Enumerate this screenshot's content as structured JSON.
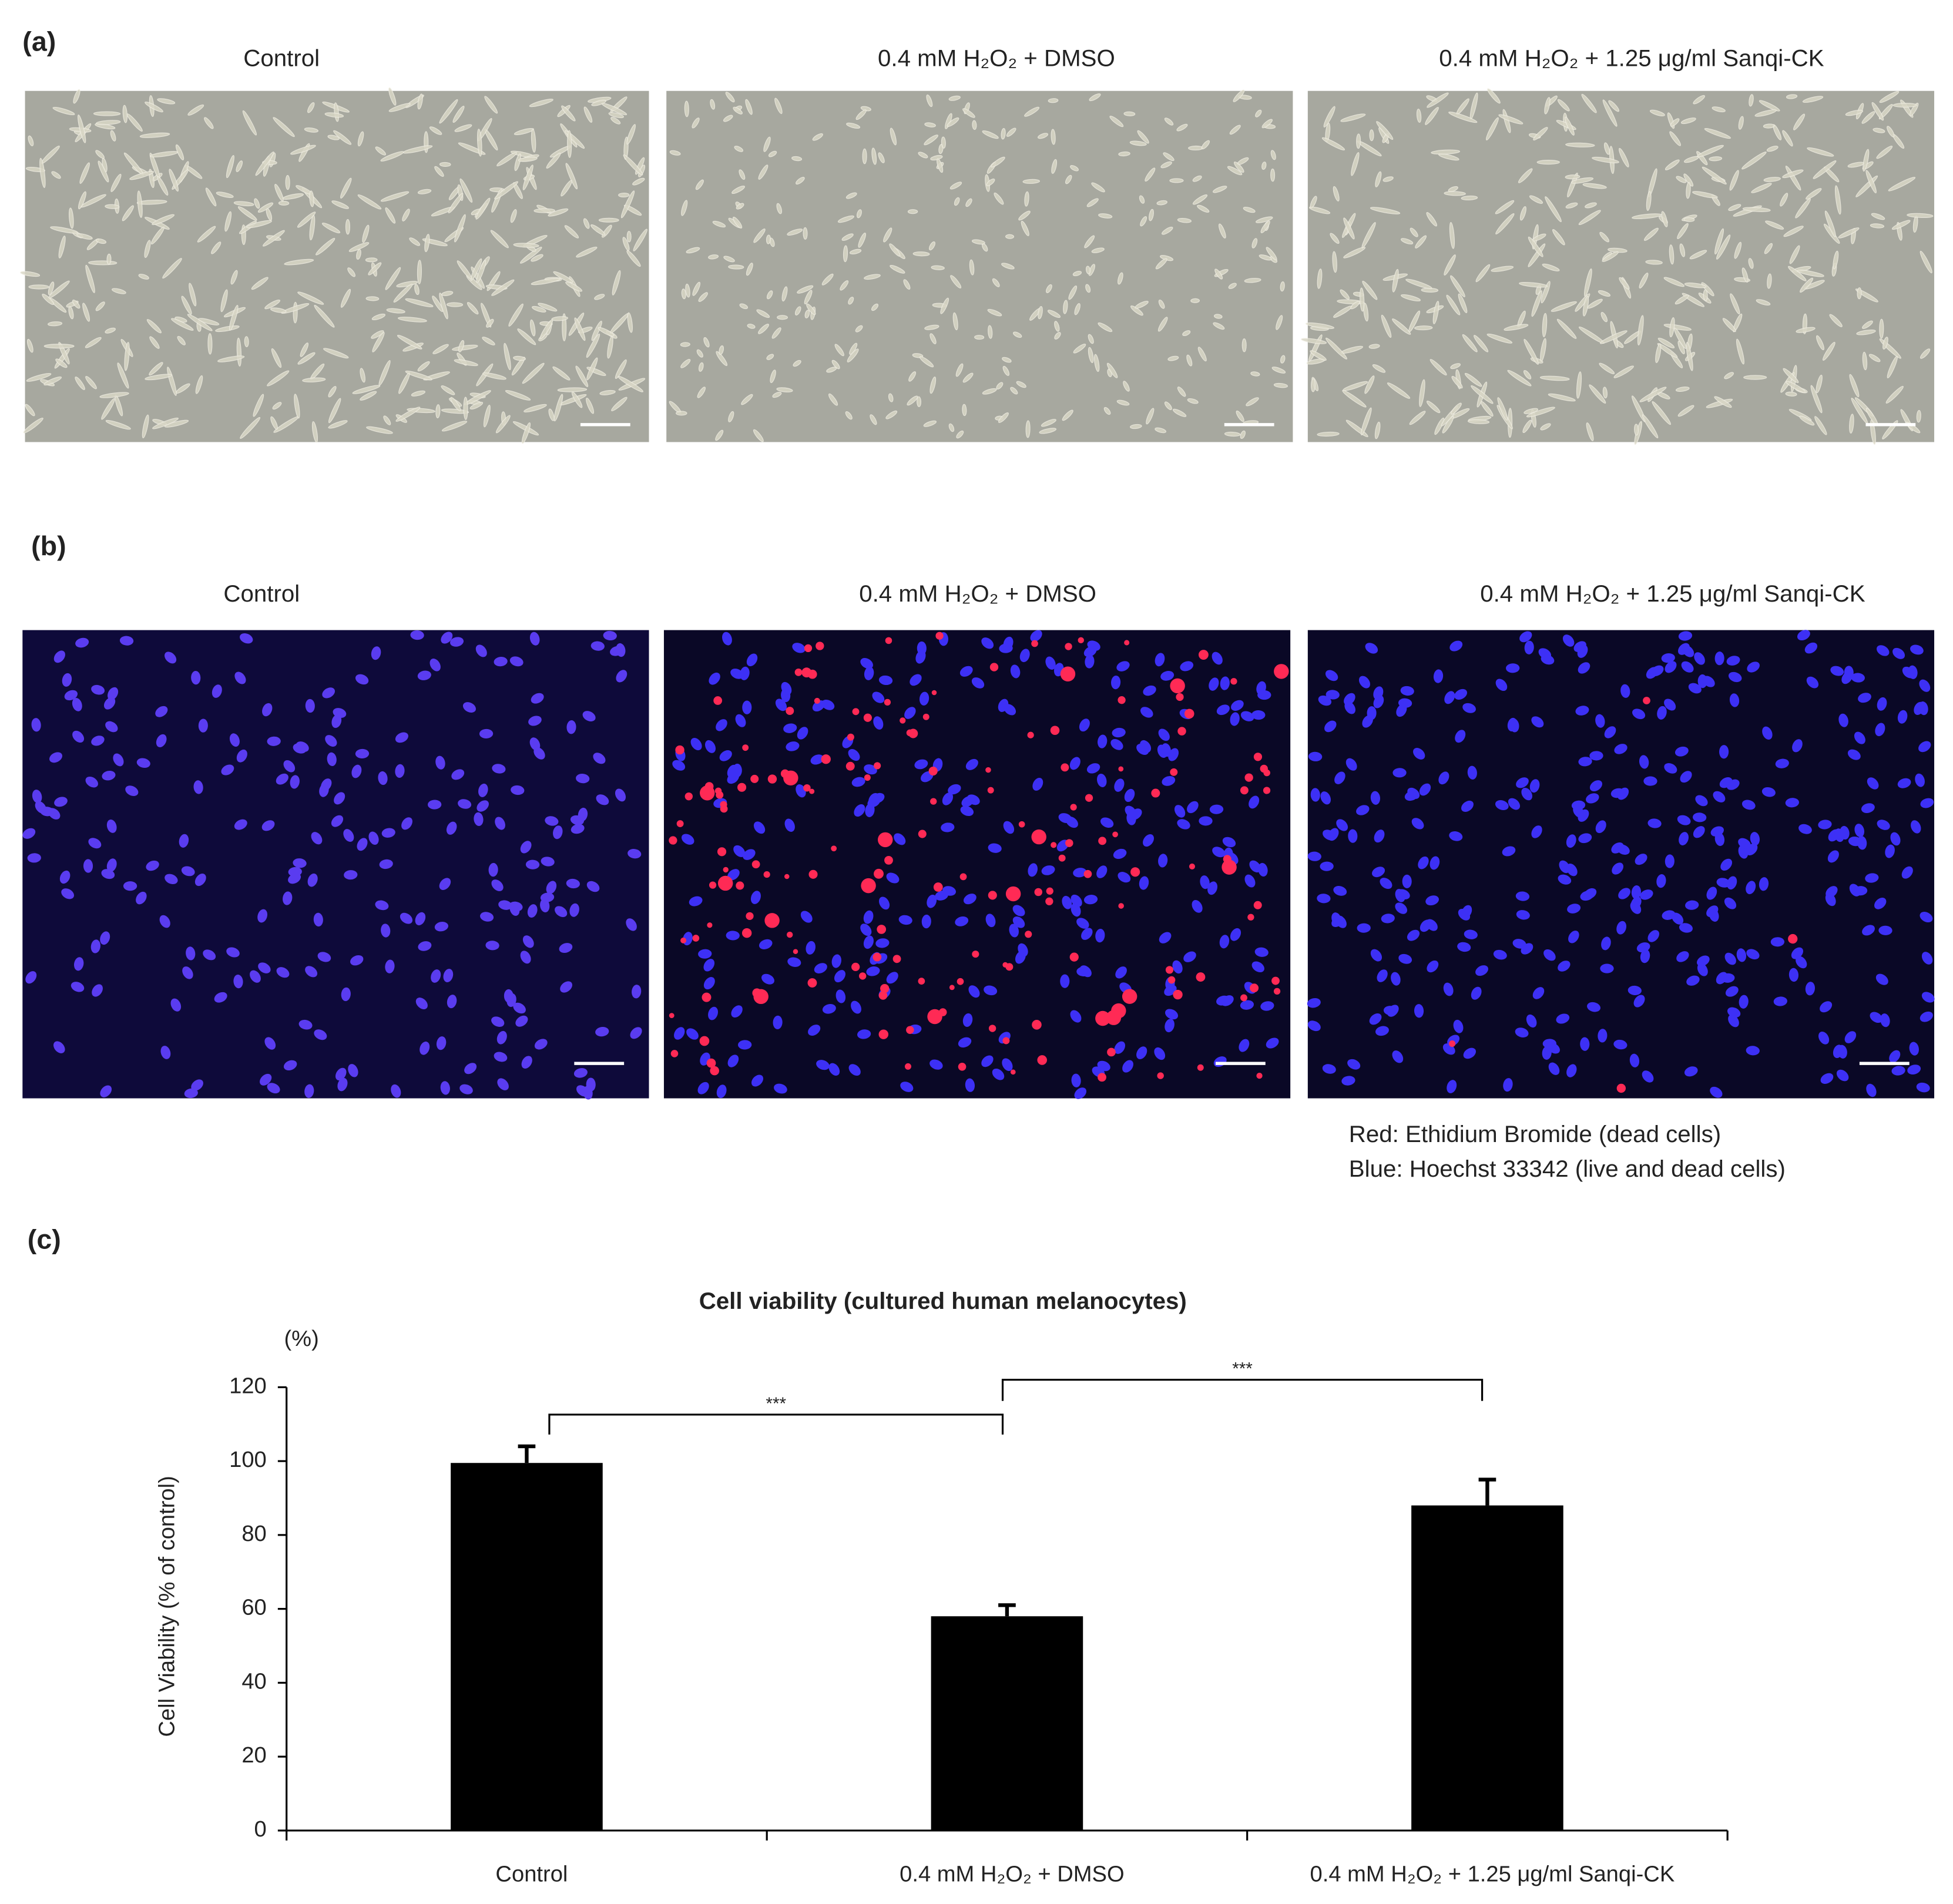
{
  "panel_a": {
    "label": "(a)",
    "titles": [
      "Control",
      "0.4 mM  H₂O₂ + DMSO",
      "0.4 mM  H₂O₂ + 1.25 μg/ml Sanqi-CK"
    ]
  },
  "panel_b": {
    "label": "(b)",
    "titles": [
      "Control",
      "0.4 mM  H₂O₂ + DMSO",
      "0.4 mM  H₂O₂ + 1.25 μg/ml Sanqi-CK"
    ],
    "legend": [
      "Red: Ethidium Bromide (dead cells)",
      "Blue: Hoechst 33342 (live and dead cells)"
    ]
  },
  "panel_c": {
    "label": "(c)"
  },
  "chart_data": {
    "type": "bar",
    "title": "Cell viability (cultured human melanocytes)",
    "y_unit": "(%)",
    "y_label": "Cell Viability (% of control)",
    "categories": [
      "Control",
      "0.4 mM  H₂O₂ + DMSO",
      "0.4 mM  H₂O₂ + 1.25 μg/ml Sanqi-CK"
    ],
    "values": [
      99.5,
      58,
      88
    ],
    "errors": [
      4.5,
      3,
      7
    ],
    "color": "#000000",
    "ylim": [
      0,
      120
    ],
    "yticks": [
      0,
      20,
      40,
      60,
      80,
      100,
      120
    ],
    "annotations": [
      {
        "text": "***"
      },
      {
        "text": "***"
      }
    ]
  }
}
